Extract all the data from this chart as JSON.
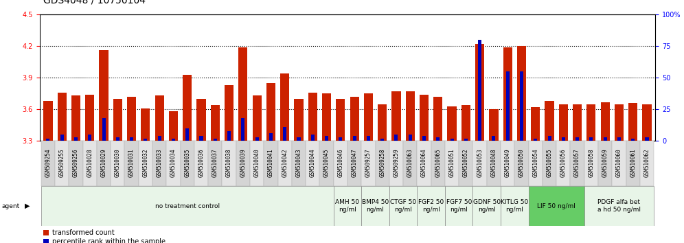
{
  "title": "GDS4048 / 10750104",
  "samples": [
    "GSM509254",
    "GSM509255",
    "GSM509256",
    "GSM510028",
    "GSM510029",
    "GSM510030",
    "GSM510031",
    "GSM510032",
    "GSM510033",
    "GSM510034",
    "GSM510035",
    "GSM510036",
    "GSM510037",
    "GSM510038",
    "GSM510039",
    "GSM510040",
    "GSM510041",
    "GSM510042",
    "GSM510043",
    "GSM510044",
    "GSM510045",
    "GSM510046",
    "GSM510047",
    "GSM509257",
    "GSM509258",
    "GSM509259",
    "GSM510063",
    "GSM510064",
    "GSM510065",
    "GSM510051",
    "GSM510052",
    "GSM510053",
    "GSM510048",
    "GSM510049",
    "GSM510050",
    "GSM510054",
    "GSM510055",
    "GSM510056",
    "GSM510057",
    "GSM510058",
    "GSM510059",
    "GSM510060",
    "GSM510061",
    "GSM510062"
  ],
  "transformed_count": [
    3.68,
    3.76,
    3.73,
    3.74,
    4.16,
    3.7,
    3.72,
    3.61,
    3.73,
    3.58,
    3.93,
    3.7,
    3.64,
    3.83,
    4.19,
    3.73,
    3.85,
    3.94,
    3.7,
    3.76,
    3.75,
    3.7,
    3.72,
    3.75,
    3.65,
    3.77,
    3.77,
    3.74,
    3.72,
    3.63,
    3.64,
    4.22,
    3.6,
    4.19,
    4.2,
    3.62,
    3.68,
    3.65,
    3.65,
    3.65,
    3.67,
    3.65,
    3.66,
    3.65
  ],
  "percentile_rank": [
    2,
    5,
    3,
    5,
    18,
    3,
    3,
    2,
    4,
    2,
    10,
    4,
    2,
    8,
    18,
    3,
    6,
    11,
    3,
    5,
    4,
    3,
    4,
    4,
    2,
    5,
    5,
    4,
    3,
    2,
    2,
    80,
    4,
    55,
    55,
    2,
    4,
    3,
    3,
    3,
    3,
    3,
    2,
    3
  ],
  "agent_groups": [
    {
      "label": "no treatment control",
      "start": 0,
      "end": 21,
      "color": "#e8f5e8"
    },
    {
      "label": "AMH 50\nng/ml",
      "start": 21,
      "end": 23,
      "color": "#e8f5e8"
    },
    {
      "label": "BMP4 50\nng/ml",
      "start": 23,
      "end": 25,
      "color": "#e8f5e8"
    },
    {
      "label": "CTGF 50\nng/ml",
      "start": 25,
      "end": 27,
      "color": "#e8f5e8"
    },
    {
      "label": "FGF2 50\nng/ml",
      "start": 27,
      "end": 29,
      "color": "#e8f5e8"
    },
    {
      "label": "FGF7 50\nng/ml",
      "start": 29,
      "end": 31,
      "color": "#e8f5e8"
    },
    {
      "label": "GDNF 50\nng/ml",
      "start": 31,
      "end": 33,
      "color": "#e8f5e8"
    },
    {
      "label": "KITLG 50\nng/ml",
      "start": 33,
      "end": 35,
      "color": "#e8f5e8"
    },
    {
      "label": "LIF 50 ng/ml",
      "start": 35,
      "end": 39,
      "color": "#66cc66"
    },
    {
      "label": "PDGF alfa bet\na hd 50 ng/ml",
      "start": 39,
      "end": 44,
      "color": "#e8f5e8"
    }
  ],
  "ylim_left": [
    3.3,
    4.5
  ],
  "ylim_right": [
    0,
    100
  ],
  "yticks_left": [
    3.3,
    3.6,
    3.9,
    4.2,
    4.5
  ],
  "yticks_right": [
    0,
    25,
    50,
    75,
    100
  ],
  "bar_color_red": "#cc2200",
  "bar_color_blue": "#0000bb",
  "title_fontsize": 10,
  "tick_fontsize": 5.5,
  "agent_label_fontsize": 6.5
}
